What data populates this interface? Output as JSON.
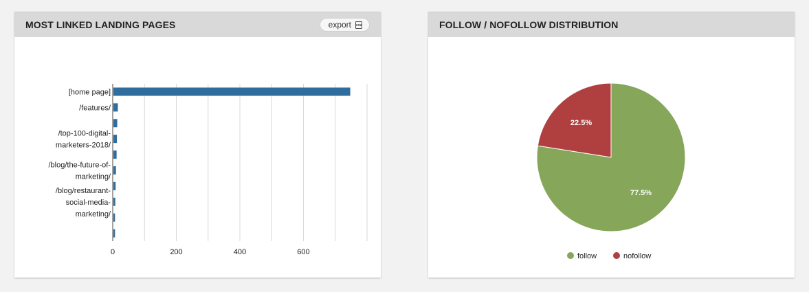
{
  "left_panel": {
    "title": "MOST LINKED LANDING PAGES",
    "export_label": "export",
    "export_icon": "csv-icon"
  },
  "right_panel": {
    "title": "FOLLOW / NOFOLLOW DISTRIBUTION"
  },
  "chart_data": [
    {
      "type": "bar",
      "orientation": "horizontal",
      "title": "MOST LINKED LANDING PAGES",
      "categories": [
        [
          "[home page]"
        ],
        [
          "/features/"
        ],
        [],
        [
          "/top-100-digital-",
          "marketers-2018/"
        ],
        [],
        [
          "/blog/the-future-of-",
          "marketing/"
        ],
        [],
        [
          "/blog/restaurant-",
          "social-media-",
          "marketing/"
        ],
        [],
        []
      ],
      "values": [
        745,
        14,
        12,
        11,
        10,
        8,
        7,
        6,
        5,
        5
      ],
      "xticks": [
        0,
        200,
        400,
        600
      ],
      "xlim": [
        0,
        800
      ],
      "grid": true,
      "color": "#2e6d9e"
    },
    {
      "type": "pie",
      "title": "FOLLOW / NOFOLLOW DISTRIBUTION",
      "slices": [
        {
          "name": "follow",
          "value": 77.5,
          "label": "77.5%",
          "color": "#86a65a"
        },
        {
          "name": "nofollow",
          "value": 22.5,
          "label": "22.5%",
          "color": "#b0403f"
        }
      ],
      "legend": "bottom"
    }
  ]
}
